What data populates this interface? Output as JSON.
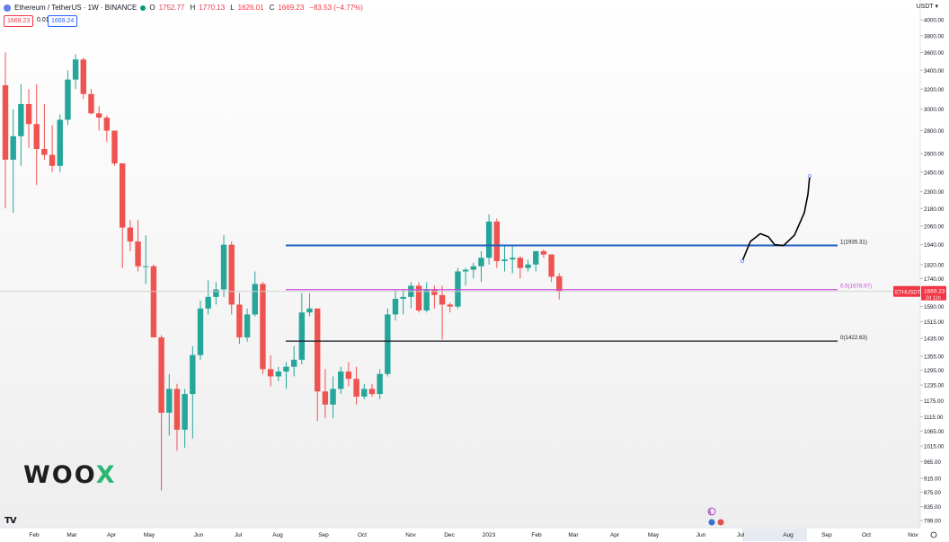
{
  "header": {
    "symbol": "Ethereum / TetherUS · 1W · BINANCE",
    "open_label": "O",
    "open": "1752.77",
    "high_label": "H",
    "high": "1770.13",
    "low_label": "L",
    "low": "1626.01",
    "close_label": "C",
    "close": "1669.23",
    "change": "−83.53 (−4.77%)",
    "bid": "1669.23",
    "spread": "0.01",
    "ask": "1669.24",
    "currency": "USDT ▾"
  },
  "logo": {
    "text_main": "WOO",
    "text_x": "X"
  },
  "tv_logo": "TV",
  "colors": {
    "up": "#26a69a",
    "down": "#ef5350",
    "fib1": "#1f5fbf",
    "fib05": "#c94bd6",
    "fib0": "#131722",
    "sketch": "#000000",
    "crosshair": "#cfcfcf"
  },
  "chart_data": {
    "type": "candlestick",
    "title": "Ethereum / TetherUS · 1W · BINANCE",
    "y_scale": "log",
    "ylim": [
      800,
      4150
    ],
    "y_ticks": [
      "4000.00",
      "3800.00",
      "3600.00",
      "3400.00",
      "3200.00",
      "3000.00",
      "2800.00",
      "2600.00",
      "2450.00",
      "2300.00",
      "2180.00",
      "2060.00",
      "1940.00",
      "1820.00",
      "1740.00",
      "1590.00",
      "1515.00",
      "1435.00",
      "1355.00",
      "1295.00",
      "1235.00",
      "1175.00",
      "1115.00",
      "1065.00",
      "1015.00",
      "965.00",
      "915.00",
      "875.00",
      "835.00",
      "799.00"
    ],
    "x_ticks": [
      "Feb",
      "Mar",
      "Apr",
      "May",
      "Jun",
      "Jul",
      "Aug",
      "Sep",
      "Oct",
      "Nov",
      "Dec",
      "2023",
      "Feb",
      "Mar",
      "Apr",
      "May",
      "Jun",
      "Jul",
      "Aug",
      "Sep",
      "Oct",
      "Nov"
    ],
    "candles": [
      {
        "o": 3240,
        "h": 3600,
        "l": 2180,
        "c": 2550
      },
      {
        "o": 2550,
        "h": 3000,
        "l": 2150,
        "c": 2750
      },
      {
        "o": 2750,
        "h": 3250,
        "l": 2500,
        "c": 3050
      },
      {
        "o": 3050,
        "h": 3200,
        "l": 2650,
        "c": 2860
      },
      {
        "o": 2860,
        "h": 3250,
        "l": 2350,
        "c": 2640
      },
      {
        "o": 2640,
        "h": 3050,
        "l": 2550,
        "c": 2590
      },
      {
        "o": 2590,
        "h": 2850,
        "l": 2450,
        "c": 2500
      },
      {
        "o": 2500,
        "h": 2950,
        "l": 2450,
        "c": 2900
      },
      {
        "o": 2900,
        "h": 3400,
        "l": 2850,
        "c": 3300
      },
      {
        "o": 3300,
        "h": 3580,
        "l": 3200,
        "c": 3520
      },
      {
        "o": 3520,
        "h": 3540,
        "l": 3100,
        "c": 3150
      },
      {
        "o": 3150,
        "h": 3200,
        "l": 2950,
        "c": 2960
      },
      {
        "o": 2960,
        "h": 3030,
        "l": 2800,
        "c": 2920
      },
      {
        "o": 2920,
        "h": 2940,
        "l": 2700,
        "c": 2800
      },
      {
        "o": 2800,
        "h": 2800,
        "l": 2500,
        "c": 2520
      },
      {
        "o": 2520,
        "h": 2520,
        "l": 1800,
        "c": 2050
      },
      {
        "o": 2050,
        "h": 2100,
        "l": 1900,
        "c": 1960
      },
      {
        "o": 1960,
        "h": 2100,
        "l": 1780,
        "c": 1810
      },
      {
        "o": 1810,
        "h": 2000,
        "l": 1710,
        "c": 1810
      },
      {
        "o": 1810,
        "h": 1820,
        "l": 1440,
        "c": 1440
      },
      {
        "o": 1440,
        "h": 1450,
        "l": 880,
        "c": 1130
      },
      {
        "o": 1130,
        "h": 1280,
        "l": 1050,
        "c": 1220
      },
      {
        "o": 1220,
        "h": 1240,
        "l": 1000,
        "c": 1070
      },
      {
        "o": 1070,
        "h": 1220,
        "l": 1010,
        "c": 1200
      },
      {
        "o": 1200,
        "h": 1400,
        "l": 1040,
        "c": 1360
      },
      {
        "o": 1360,
        "h": 1620,
        "l": 1340,
        "c": 1580
      },
      {
        "o": 1580,
        "h": 1730,
        "l": 1550,
        "c": 1640
      },
      {
        "o": 1640,
        "h": 1720,
        "l": 1600,
        "c": 1680
      },
      {
        "o": 1680,
        "h": 2000,
        "l": 1640,
        "c": 1940
      },
      {
        "o": 1940,
        "h": 1960,
        "l": 1550,
        "c": 1600
      },
      {
        "o": 1600,
        "h": 1660,
        "l": 1410,
        "c": 1440
      },
      {
        "o": 1440,
        "h": 1580,
        "l": 1420,
        "c": 1550
      },
      {
        "o": 1550,
        "h": 1780,
        "l": 1540,
        "c": 1710
      },
      {
        "o": 1710,
        "h": 1720,
        "l": 1280,
        "c": 1300
      },
      {
        "o": 1300,
        "h": 1360,
        "l": 1230,
        "c": 1270
      },
      {
        "o": 1270,
        "h": 1310,
        "l": 1250,
        "c": 1290
      },
      {
        "o": 1290,
        "h": 1330,
        "l": 1220,
        "c": 1310
      },
      {
        "o": 1310,
        "h": 1400,
        "l": 1270,
        "c": 1340
      },
      {
        "o": 1340,
        "h": 1660,
        "l": 1320,
        "c": 1560
      },
      {
        "o": 1560,
        "h": 1660,
        "l": 1540,
        "c": 1580
      },
      {
        "o": 1580,
        "h": 1580,
        "l": 1100,
        "c": 1210
      },
      {
        "o": 1210,
        "h": 1300,
        "l": 1110,
        "c": 1160
      },
      {
        "o": 1160,
        "h": 1270,
        "l": 1110,
        "c": 1220
      },
      {
        "o": 1220,
        "h": 1310,
        "l": 1200,
        "c": 1290
      },
      {
        "o": 1290,
        "h": 1330,
        "l": 1230,
        "c": 1260
      },
      {
        "o": 1260,
        "h": 1310,
        "l": 1160,
        "c": 1190
      },
      {
        "o": 1190,
        "h": 1240,
        "l": 1180,
        "c": 1220
      },
      {
        "o": 1220,
        "h": 1240,
        "l": 1190,
        "c": 1200
      },
      {
        "o": 1200,
        "h": 1300,
        "l": 1180,
        "c": 1280
      },
      {
        "o": 1280,
        "h": 1580,
        "l": 1270,
        "c": 1550
      },
      {
        "o": 1550,
        "h": 1680,
        "l": 1520,
        "c": 1630
      },
      {
        "o": 1630,
        "h": 1680,
        "l": 1550,
        "c": 1640
      },
      {
        "o": 1640,
        "h": 1720,
        "l": 1580,
        "c": 1700
      },
      {
        "o": 1700,
        "h": 1720,
        "l": 1560,
        "c": 1570
      },
      {
        "o": 1570,
        "h": 1720,
        "l": 1560,
        "c": 1680
      },
      {
        "o": 1680,
        "h": 1700,
        "l": 1580,
        "c": 1650
      },
      {
        "o": 1650,
        "h": 1700,
        "l": 1430,
        "c": 1600
      },
      {
        "o": 1600,
        "h": 1610,
        "l": 1560,
        "c": 1590
      },
      {
        "o": 1590,
        "h": 1800,
        "l": 1580,
        "c": 1780
      },
      {
        "o": 1780,
        "h": 1800,
        "l": 1700,
        "c": 1790
      },
      {
        "o": 1790,
        "h": 1830,
        "l": 1740,
        "c": 1810
      },
      {
        "o": 1810,
        "h": 1900,
        "l": 1720,
        "c": 1860
      },
      {
        "o": 1860,
        "h": 2140,
        "l": 1820,
        "c": 2090
      },
      {
        "o": 2090,
        "h": 2110,
        "l": 1800,
        "c": 1840
      },
      {
        "o": 1840,
        "h": 1930,
        "l": 1780,
        "c": 1850
      },
      {
        "o": 1850,
        "h": 1930,
        "l": 1770,
        "c": 1860
      },
      {
        "o": 1860,
        "h": 1870,
        "l": 1740,
        "c": 1800
      },
      {
        "o": 1800,
        "h": 1850,
        "l": 1780,
        "c": 1820
      },
      {
        "o": 1820,
        "h": 1900,
        "l": 1780,
        "c": 1900
      },
      {
        "o": 1900,
        "h": 1910,
        "l": 1860,
        "c": 1880
      },
      {
        "o": 1880,
        "h": 1880,
        "l": 1720,
        "c": 1750
      },
      {
        "o": 1752.77,
        "h": 1770.13,
        "l": 1626.01,
        "c": 1669.23
      }
    ],
    "fib_levels": [
      {
        "ratio": "1",
        "value": 1935.31,
        "label": "1(1935.31)"
      },
      {
        "ratio": "0.5",
        "value": 1678.97,
        "label": "0.5(1678.97)"
      },
      {
        "ratio": "0",
        "value": 1422.63,
        "label": "0(1422.63)"
      }
    ],
    "last_price": {
      "symbol": "ETHUSDT",
      "price": "1669.23",
      "countdown": "2d 11h"
    },
    "crosshair_price": 1669.23,
    "grid": false
  }
}
